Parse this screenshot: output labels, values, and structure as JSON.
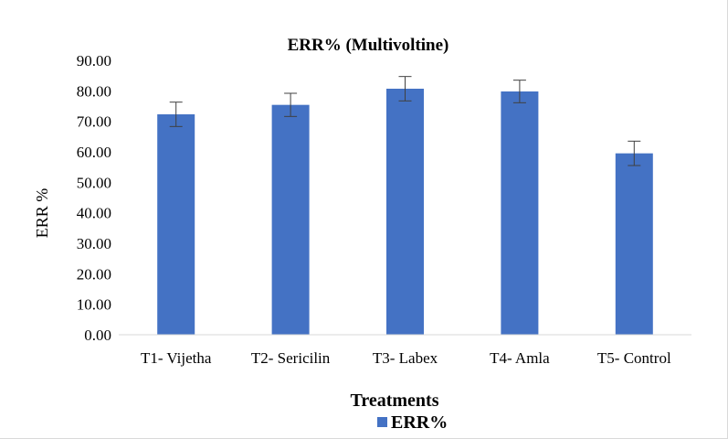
{
  "chart_data": {
    "type": "bar",
    "title": "ERR% (Multivoltine)",
    "xlabel": "Treatments",
    "ylabel": "ERR %",
    "categories": [
      "T1- Vijetha",
      "T2- Sericilin",
      "T3- Labex",
      "T4- Amla",
      "T5- Control"
    ],
    "series": [
      {
        "name": "ERR%",
        "values": [
          72.3,
          75.4,
          80.7,
          79.8,
          59.5
        ],
        "errors": [
          4.0,
          3.8,
          4.0,
          3.7,
          4.0
        ],
        "color": "#4472C4"
      }
    ],
    "ylim": [
      0,
      90
    ],
    "yticks": [
      "0.00",
      "10.00",
      "20.00",
      "30.00",
      "40.00",
      "50.00",
      "60.00",
      "70.00",
      "80.00",
      "90.00"
    ],
    "grid": false,
    "legend_position": "bottom"
  }
}
